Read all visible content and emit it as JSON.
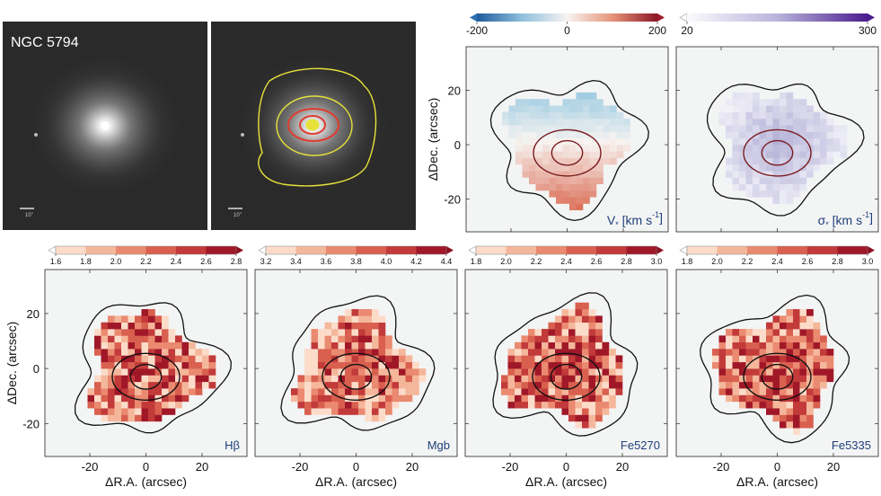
{
  "figure": {
    "galaxy_name": "NGC 5794",
    "scalebar_label": "10\"",
    "x_axis_label": "ΔR.A. (arcsec)",
    "y_axis_label": "ΔDec. (arcsec)"
  },
  "chart_data": [
    {
      "type": "heatmap",
      "id": "velocity",
      "label": "V* [km s⁻¹]",
      "label_prefix": "V",
      "label_sub": "*",
      "label_units": "[km s",
      "label_exp": "-1",
      "label_close": "]",
      "colorbar": {
        "min": -200,
        "max": 200,
        "ticks": [
          -200,
          0,
          200
        ],
        "colormap": "blue-white-red"
      },
      "axes": {
        "xlim": [
          -36,
          36
        ],
        "ylim": [
          -32,
          36
        ],
        "yticks": [
          -20,
          0,
          20
        ],
        "xticks": []
      }
    },
    {
      "type": "heatmap",
      "id": "dispersion",
      "label": "σ* [km s⁻¹]",
      "label_prefix": "σ",
      "label_sub": "*",
      "label_units": "[km s",
      "label_exp": "-1",
      "label_close": "]",
      "colorbar": {
        "min": 20,
        "max": 300,
        "ticks": [
          20,
          300
        ],
        "colormap": "white-purple"
      },
      "axes": {
        "xlim": [
          -36,
          36
        ],
        "ylim": [
          -32,
          36
        ],
        "yticks": [],
        "xticks": []
      }
    },
    {
      "type": "heatmap",
      "id": "hbeta",
      "label": "Hβ",
      "colorbar": {
        "min": 1.6,
        "max": 2.8,
        "ticks": [
          "1.6",
          "1.8",
          "2.0",
          "2.2",
          "2.4",
          "2.6",
          "2.8"
        ],
        "colormap": "reds-discrete"
      },
      "axes": {
        "xlim": [
          -36,
          36
        ],
        "ylim": [
          -32,
          36
        ],
        "yticks": [
          -20,
          0,
          20
        ],
        "xticks": [
          -20,
          0,
          20
        ]
      }
    },
    {
      "type": "heatmap",
      "id": "mgb",
      "label": "Mgb",
      "colorbar": {
        "min": 3.2,
        "max": 4.4,
        "ticks": [
          "3.2",
          "3.4",
          "3.6",
          "3.8",
          "4.0",
          "4.2",
          "4.4"
        ],
        "colormap": "reds-discrete"
      },
      "axes": {
        "xlim": [
          -36,
          36
        ],
        "ylim": [
          -32,
          36
        ],
        "yticks": [],
        "xticks": [
          -20,
          0,
          20
        ]
      }
    },
    {
      "type": "heatmap",
      "id": "fe5270",
      "label": "Fe5270",
      "colorbar": {
        "min": 1.8,
        "max": 3.0,
        "ticks": [
          "1.8",
          "2.0",
          "2.2",
          "2.4",
          "2.6",
          "2.8",
          "3.0"
        ],
        "colormap": "reds-discrete"
      },
      "axes": {
        "xlim": [
          -36,
          36
        ],
        "ylim": [
          -32,
          36
        ],
        "yticks": [],
        "xticks": [
          -20,
          0,
          20
        ]
      }
    },
    {
      "type": "heatmap",
      "id": "fe5335",
      "label": "Fe5335",
      "colorbar": {
        "min": 1.8,
        "max": 3.0,
        "ticks": [
          "1.8",
          "2.0",
          "2.2",
          "2.4",
          "2.6",
          "2.8",
          "3.0"
        ],
        "colormap": "reds-discrete"
      },
      "axes": {
        "xlim": [
          -36,
          36
        ],
        "ylim": [
          -32,
          36
        ],
        "yticks": [],
        "xticks": [
          -20,
          0,
          20
        ]
      }
    }
  ],
  "colors": {
    "reds_discrete": [
      "#fcdcc9",
      "#f5b79b",
      "#ea8a70",
      "#d9604f",
      "#c23a3a",
      "#a01828"
    ],
    "velocity_neg": "#2d6fb3",
    "velocity_pos": "#9e1b2a",
    "dispersion_max": "#4b1d8f",
    "panel_bg": "#f3f4f4",
    "ellipse": "#7a1b1f",
    "contour_yellow": "#e6e23a",
    "contour_red": "#e03a2f"
  }
}
